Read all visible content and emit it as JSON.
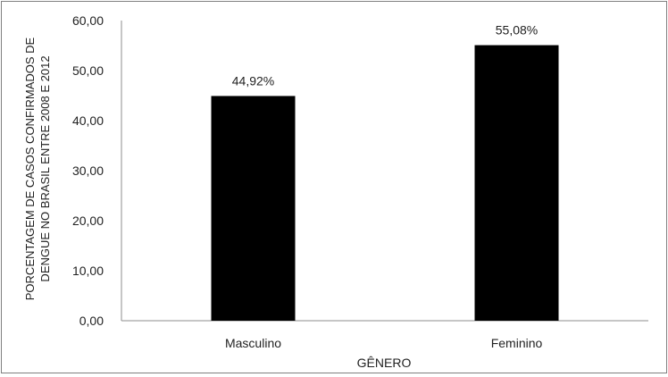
{
  "chart_data": {
    "type": "bar",
    "categories": [
      "Masculino",
      "Feminino"
    ],
    "values": [
      44.92,
      55.08
    ],
    "data_labels": [
      "44,92%",
      "55,08%"
    ],
    "xlabel": "GÊNERO",
    "ylabel_lines": [
      "PORCENTAGEM DE CASOS CONFIRMADOS DE",
      "DENGUE NO BRASIL ENTRE 2008 E 2012"
    ],
    "ylim": [
      0,
      60
    ],
    "yticks": [
      "0,00",
      "10,00",
      "20,00",
      "30,00",
      "40,00",
      "50,00",
      "60,00"
    ],
    "bar_color": "#000000",
    "grid": false,
    "legend": "none"
  }
}
